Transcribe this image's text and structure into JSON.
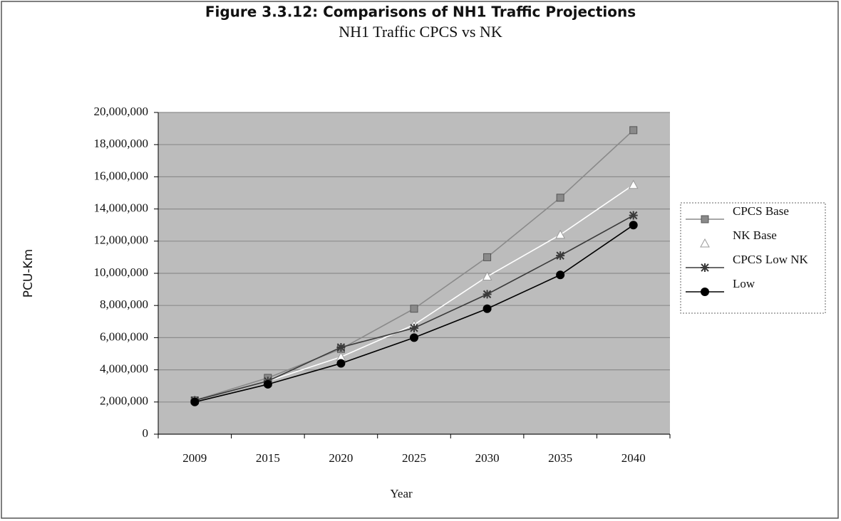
{
  "chart_data": {
    "type": "line",
    "title": "Figure 3.3.12: Comparisons of NH1 Traffic Projections",
    "subtitle": "NH1 Traffic CPCS vs NK",
    "x_label": "Year",
    "y_label": "PCU-Km",
    "categories": [
      "2009",
      "2015",
      "2020",
      "2025",
      "2030",
      "2035",
      "2040"
    ],
    "series": [
      {
        "name": "CPCS Base",
        "color": "#8a8a8a",
        "marker": "square",
        "values": [
          2100000,
          3500000,
          5300000,
          7800000,
          11000000,
          14700000,
          18900000
        ]
      },
      {
        "name": "NK Base",
        "color": "#ffffff",
        "marker": "triangle",
        "values": [
          null,
          3300000,
          4800000,
          6800000,
          9800000,
          12400000,
          15500000
        ]
      },
      {
        "name": "CPCS Low NK",
        "color": "#3a3a3a",
        "marker": "star",
        "values": [
          2100000,
          3300000,
          5400000,
          6600000,
          8700000,
          11100000,
          13600000
        ]
      },
      {
        "name": "Low",
        "color": "#000000",
        "marker": "circle",
        "values": [
          2000000,
          3100000,
          4400000,
          6000000,
          7800000,
          9900000,
          13000000
        ]
      }
    ],
    "ylim": [
      0,
      20000000
    ],
    "yticks": [
      0,
      {
        "value": 2000000,
        "label": "2,000,000"
      },
      {
        "value": 4000000,
        "label": "4,000,000"
      },
      {
        "value": 6000000,
        "label": "6,000,000"
      },
      {
        "value": 8000000,
        "label": "8,000,000"
      },
      {
        "value": 10000000,
        "label": "10,000,000"
      },
      {
        "value": 12000000,
        "label": "12,000,000"
      },
      {
        "value": 14000000,
        "label": "14,000,000"
      },
      {
        "value": 16000000,
        "label": "16,000,000"
      },
      {
        "value": 18000000,
        "label": "18,000,000"
      },
      {
        "value": 20000000,
        "label": "20,000,000"
      }
    ],
    "grid": true,
    "legend": "right"
  }
}
